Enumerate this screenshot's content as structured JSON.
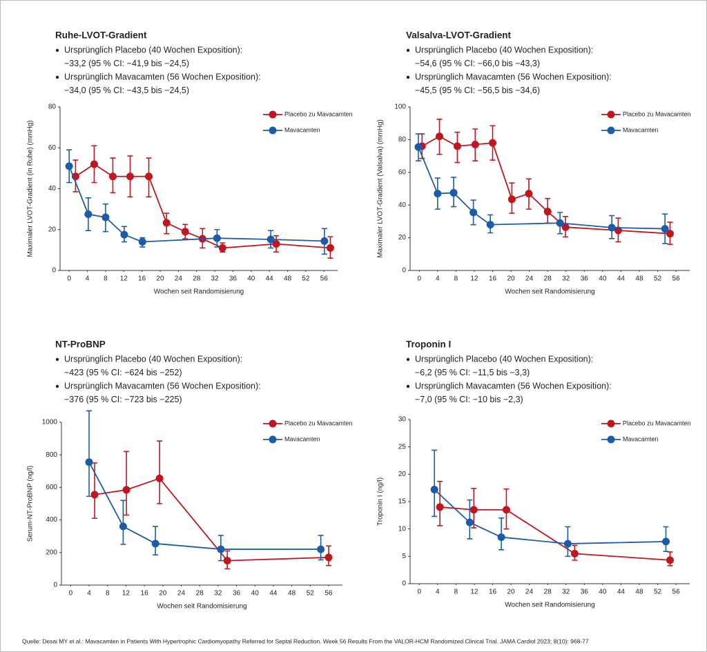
{
  "chart_data": [
    {
      "type": "line",
      "title": "Ruhe-LVOT-Gradient",
      "annotations": [
        "Ursprünglich Placebo (40 Wochen Exposition):",
        "−33,2 (95 % CI: −41,9 bis −24,5)",
        "Ursprünglich Mavacamten (56 Wochen Exposition):",
        "−34,0 (95 % CI: −43,5 bis −24,5)"
      ],
      "xlabel": "Wochen seit Randomisierung",
      "ylabel": "Maximaler LVOT-Gradient (in Ruhe) (mmHg)",
      "xlim": [
        -2,
        59
      ],
      "xticks": [
        0,
        4,
        8,
        12,
        16,
        20,
        24,
        28,
        32,
        36,
        40,
        44,
        48,
        52,
        56
      ],
      "ylim": [
        0,
        80
      ],
      "yticks": [
        0,
        20,
        40,
        60,
        80
      ],
      "error_bars": true,
      "series": [
        {
          "name": "Placebo zu Mavacamten",
          "color": "#c0161d",
          "x": [
            1.4,
            5.5,
            9.6,
            13.4,
            17.5,
            21.4,
            25.5,
            29.3,
            33.7,
            45.5,
            57.4
          ],
          "values": [
            46,
            52,
            46,
            46,
            46,
            23.3,
            19,
            15.5,
            11,
            13,
            11
          ],
          "lower": [
            38.5,
            43,
            38,
            36,
            36,
            18,
            15.5,
            11,
            9,
            9,
            6
          ],
          "upper": [
            54,
            61,
            55,
            56,
            55,
            28,
            22.5,
            20.5,
            13.5,
            17,
            16.5
          ]
        },
        {
          "name": "Mavacamten",
          "color": "#1a5ca8",
          "x": [
            0,
            4.2,
            8,
            12.1,
            16.1,
            32.5,
            44.3,
            56.1
          ],
          "values": [
            51,
            27.5,
            26,
            17.5,
            14,
            15.8,
            15.2,
            14.4
          ],
          "lower": [
            43,
            19.5,
            19,
            14,
            11.5,
            11.5,
            11,
            8
          ],
          "upper": [
            59,
            35.5,
            32.5,
            21.5,
            16,
            20,
            19.5,
            20.5
          ]
        }
      ]
    },
    {
      "type": "line",
      "title": "Valsalva-LVOT-Gradient",
      "annotations": [
        "Ursprünglich Placebo (40 Wochen Exposition):",
        "−54,6 (95 % CI: −66,0 bis −43,3)",
        "Ursprünglich Mavacamten (56 Wochen Exposition):",
        "−45,5 (95 % CI: −56,5 bis −34,6)"
      ],
      "xlabel": "Wochen seit Randomisierung",
      "ylabel": "Maximaler LVOT-Gradient (Valsalva) (mmHg)",
      "xlim": [
        -2,
        59
      ],
      "xticks": [
        0,
        4,
        8,
        12,
        16,
        20,
        24,
        28,
        32,
        36,
        40,
        44,
        48,
        52,
        56
      ],
      "ylim": [
        0,
        100
      ],
      "yticks": [
        0,
        20,
        40,
        60,
        80,
        100
      ],
      "error_bars": true,
      "series": [
        {
          "name": "Placebo zu Mavacamten",
          "color": "#c0161d",
          "x": [
            0.6,
            4.4,
            8.3,
            12.2,
            16,
            20.2,
            23.9,
            28,
            31.9,
            43.4,
            54.7
          ],
          "values": [
            76,
            82,
            76,
            77,
            78,
            43.5,
            47,
            36,
            26.5,
            24.5,
            22.5
          ],
          "lower": [
            68.5,
            71,
            66,
            67,
            67.5,
            35,
            37.5,
            29,
            20.5,
            17.5,
            16
          ],
          "upper": [
            83.5,
            92.5,
            84.5,
            86.5,
            88.5,
            53.5,
            56,
            44,
            33,
            32,
            29.5
          ]
        },
        {
          "name": "Mavacamten",
          "color": "#1a5ca8",
          "x": [
            -0.2,
            4,
            7.5,
            11.8,
            15.5,
            30.7,
            42,
            53.6
          ],
          "values": [
            75.5,
            47,
            47.5,
            35.5,
            28,
            29,
            26.2,
            25.5
          ],
          "lower": [
            67,
            37.5,
            39,
            28,
            23,
            22.5,
            19.5,
            16.5
          ],
          "upper": [
            83.5,
            56.5,
            57,
            43,
            34,
            35.5,
            33.5,
            34.5
          ]
        }
      ]
    },
    {
      "type": "line",
      "title": "NT-ProBNP",
      "annotations": [
        "Ursprünglich Placebo (40 Wochen Exposition):",
        "−423 (95 % CI: −624 bis −252)",
        "Ursprünglich Mavacamten (56 Wochen Exposition):",
        "−376 (95 % CI: −723 bis −225)"
      ],
      "xlabel": "Wochen seit Randomisierung",
      "ylabel": "Serum-NT-ProBNP (ng/l)",
      "xlim": [
        -2,
        59
      ],
      "xticks": [
        0,
        4,
        8,
        12,
        16,
        20,
        24,
        28,
        32,
        36,
        40,
        44,
        48,
        52,
        56
      ],
      "ylim": [
        0,
        1000
      ],
      "yticks": [
        0,
        200,
        400,
        600,
        800,
        1000
      ],
      "error_bars": true,
      "series": [
        {
          "name": "Placebo zu Mavacamten",
          "color": "#c0161d",
          "x": [
            5.2,
            12.1,
            19.3,
            34,
            56
          ],
          "values": [
            555,
            585,
            655,
            150,
            170
          ],
          "lower": [
            410,
            430,
            500,
            100,
            120
          ],
          "upper": [
            750,
            820,
            885,
            210,
            240
          ]
        },
        {
          "name": "Mavacamten",
          "color": "#1a5ca8",
          "x": [
            4,
            11.4,
            18.4,
            32.6,
            54.3
          ],
          "values": [
            755,
            360,
            255,
            220,
            220
          ],
          "lower": [
            545,
            250,
            185,
            150,
            155
          ],
          "upper": [
            1070,
            520,
            360,
            305,
            305
          ]
        }
      ]
    },
    {
      "type": "line",
      "title": "Troponin I",
      "annotations": [
        "Ursprünglich Placebo (40 Wochen Exposition):",
        "−6,2 (95 % CI: −11,5 bis −3,3)",
        "Ursprünglich Mavacamten (56 Wochen Exposition):",
        "−7,0 (95 % CI: −10 bis −2,3)"
      ],
      "xlabel": "Wochen seit Randomisierung",
      "ylabel": "Troponin I (ng/l)",
      "xlim": [
        -2,
        59
      ],
      "xticks": [
        0,
        4,
        8,
        12,
        16,
        20,
        24,
        28,
        32,
        36,
        40,
        44,
        48,
        52,
        56
      ],
      "ylim": [
        0,
        30
      ],
      "yticks": [
        0,
        5,
        10,
        15,
        20,
        25,
        30
      ],
      "error_bars": true,
      "series": [
        {
          "name": "Placebo zu Mavacamten",
          "color": "#c0161d",
          "x": [
            4.5,
            11.9,
            19,
            33.9,
            54.7
          ],
          "values": [
            14,
            13.5,
            13.5,
            5.5,
            4.3
          ],
          "lower": [
            10.6,
            10.2,
            10,
            4.3,
            3.3
          ],
          "upper": [
            18.7,
            17.4,
            17.3,
            7,
            5.8
          ]
        },
        {
          "name": "Mavacamten",
          "color": "#1a5ca8",
          "x": [
            3.3,
            11,
            17.9,
            32.4,
            53.8
          ],
          "values": [
            17.2,
            11.2,
            8.5,
            7.3,
            7.7
          ],
          "lower": [
            12.3,
            8.2,
            6.2,
            5,
            5.9
          ],
          "upper": [
            24.4,
            15.3,
            12,
            10.4,
            10.4
          ]
        }
      ]
    }
  ],
  "source": "Quelle: Desai MY et al.: Mavacamten in Patients With Hypertrophic Cardiomyopathy Referred for Septal Reduction. Week 56 Results From the VALOR-HCM Randomized Clinical Trial. JAMA Cardiol 2023; 8(10): 968-77"
}
